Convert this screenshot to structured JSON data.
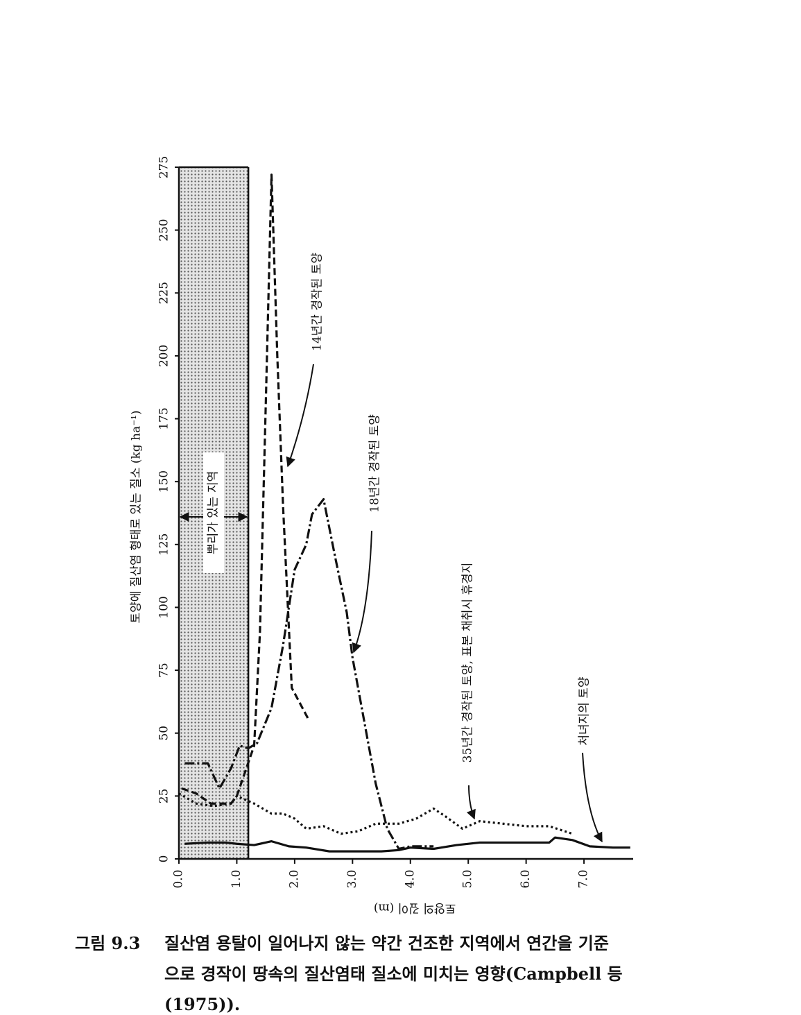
{
  "chart_data": {
    "type": "line",
    "y_label": "토양에 질산염 형태로 있는 질소 (kg ha⁻¹)",
    "x_label": "토양의 깊이 (m)",
    "xlim": [
      0,
      7.85
    ],
    "ylim": [
      0,
      275
    ],
    "xticks": [
      {
        "value": 0,
        "label": "0.0"
      },
      {
        "value": 1,
        "label": "1.0"
      },
      {
        "value": 2,
        "label": "2.0"
      },
      {
        "value": 3,
        "label": "3.0"
      },
      {
        "value": 4,
        "label": "4.0"
      },
      {
        "value": 5,
        "label": "5.0"
      },
      {
        "value": 6,
        "label": "6.0"
      },
      {
        "value": 7,
        "label": "7.0"
      }
    ],
    "yticks": [
      0,
      25,
      50,
      75,
      100,
      125,
      150,
      175,
      200,
      225,
      250,
      275
    ],
    "root_zone": {
      "label": "뿌리가 있는 지역",
      "range": [
        0,
        1.2
      ]
    },
    "series": [
      {
        "name": "14년간 경작된 토양",
        "color": "#111111",
        "style": "dashed",
        "x": [
          0.05,
          0.3,
          0.55,
          0.9,
          1.0,
          1.15,
          1.3,
          1.4,
          1.5,
          1.6,
          1.7,
          1.8,
          1.95,
          2.25
        ],
        "values": [
          28,
          26,
          22,
          22,
          25,
          35,
          45,
          90,
          180,
          272,
          200,
          140,
          68,
          55
        ]
      },
      {
        "name": "18년간 경작된 토양",
        "color": "#111111",
        "style": "dashdot",
        "x": [
          0.1,
          0.5,
          0.7,
          0.9,
          1.05,
          1.2,
          1.35,
          1.6,
          1.8,
          2.0,
          2.2,
          2.3,
          2.5,
          2.7,
          2.9,
          3.0,
          3.2,
          3.4,
          3.6,
          3.8,
          4.0,
          4.4
        ],
        "values": [
          38,
          38,
          28,
          36,
          45,
          44,
          46,
          60,
          85,
          115,
          125,
          137,
          143,
          120,
          98,
          80,
          55,
          30,
          12,
          4,
          5,
          5
        ]
      },
      {
        "name": "35년간 경작된 토양, 표본 채취시  휴경지",
        "color": "#111111",
        "style": "dotted",
        "x": [
          0,
          0.3,
          0.6,
          0.9,
          1.0,
          1.3,
          1.6,
          1.8,
          2.0,
          2.2,
          2.5,
          2.8,
          3.1,
          3.4,
          3.8,
          4.1,
          4.4,
          4.6,
          4.9,
          5.2,
          5.6,
          6.0,
          6.4,
          6.8
        ],
        "values": [
          26,
          22,
          21,
          22,
          25,
          22,
          18,
          18,
          16,
          12,
          13,
          10,
          11,
          14,
          14,
          16,
          20,
          17,
          12,
          15,
          14,
          13,
          13,
          10
        ]
      },
      {
        "name": "처녀지의 토양",
        "color": "#111111",
        "style": "solid",
        "x": [
          0.1,
          0.5,
          0.8,
          1.0,
          1.3,
          1.6,
          1.9,
          2.2,
          2.6,
          3.0,
          3.5,
          3.8,
          4.0,
          4.4,
          4.8,
          5.2,
          5.6,
          6.0,
          6.4,
          6.5,
          6.8,
          7.1,
          7.5,
          7.8
        ],
        "values": [
          6,
          6.5,
          6.5,
          6,
          5.5,
          7,
          5,
          4.5,
          3,
          3,
          3,
          3.5,
          4.5,
          4,
          5.5,
          6.5,
          6.5,
          6.5,
          6.5,
          8.5,
          7.5,
          5,
          4.5,
          4.5
        ]
      }
    ]
  },
  "caption": {
    "number": "그림 9.3",
    "lines": [
      "질산염 용탈이 일어나지 않는 약간 건조한 지역에서 연간을 기준",
      "으로 경작이 땅속의 질산염태 질소에 미치는 영향(Campbell 등",
      "(1975))."
    ]
  }
}
